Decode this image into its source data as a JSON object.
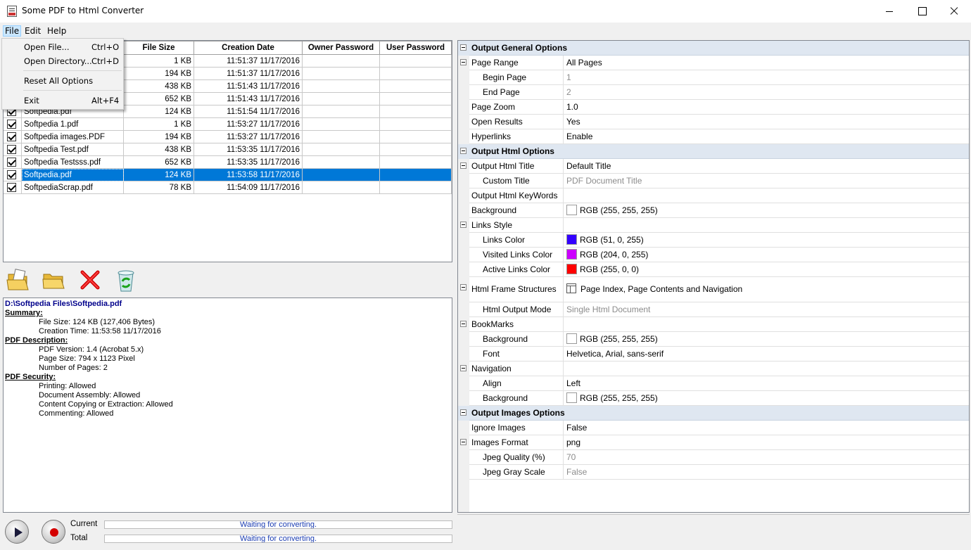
{
  "window": {
    "title": "Some PDF to Html Converter"
  },
  "menubar": {
    "file": "File",
    "edit": "Edit",
    "help": "Help"
  },
  "file_menu": [
    {
      "label": "Open File...",
      "shortcut": "Ctrl+O"
    },
    {
      "label": "Open Directory...",
      "shortcut": "Ctrl+D"
    },
    {
      "label": "Reset All Options",
      "shortcut": ""
    },
    {
      "label": "Exit",
      "shortcut": "Alt+F4"
    }
  ],
  "file_list": {
    "columns": [
      "File Size",
      "Creation Date",
      "Owner Password",
      "User Password"
    ],
    "rows": [
      {
        "name": "",
        "size": "1 KB",
        "date": "11:51:37 11/17/2016"
      },
      {
        "name": "",
        "size": "194 KB",
        "date": "11:51:37 11/17/2016"
      },
      {
        "name": "",
        "size": "438 KB",
        "date": "11:51:43 11/17/2016"
      },
      {
        "name": "",
        "size": "652 KB",
        "date": "11:51:43 11/17/2016"
      },
      {
        "name": "Softpedia.pdf",
        "size": "124 KB",
        "date": "11:51:54 11/17/2016"
      },
      {
        "name": "Softpedia 1.pdf",
        "size": "1 KB",
        "date": "11:53:27 11/17/2016"
      },
      {
        "name": "Softpedia images.PDF",
        "size": "194 KB",
        "date": "11:53:27 11/17/2016"
      },
      {
        "name": "Softpedia Test.pdf",
        "size": "438 KB",
        "date": "11:53:35 11/17/2016"
      },
      {
        "name": "Softpedia Testsss.pdf",
        "size": "652 KB",
        "date": "11:53:35 11/17/2016"
      },
      {
        "name": "Softpedia.pdf",
        "size": "124 KB",
        "date": "11:53:58 11/17/2016"
      },
      {
        "name": "SoftpediaScrap.pdf",
        "size": "78 KB",
        "date": "11:54:09 11/17/2016"
      }
    ],
    "selected_index": 9
  },
  "toolbar": {
    "icons": [
      "open-file-icon",
      "open-folder-icon",
      "delete-icon",
      "recycle-icon"
    ]
  },
  "details": {
    "path": "D:\\Softpedia Files\\Softpedia.pdf",
    "summary_head": "Summary:",
    "file_size": "File Size: 124 KB (127,406 Bytes)",
    "creation_time": "Creation Time: 11:53:58 11/17/2016",
    "desc_head": "PDF Description:",
    "pdf_version": "PDF Version: 1.4 (Acrobat 5.x)",
    "page_size": "Page Size: 794 x 1123 Pixel",
    "num_pages": "Number of Pages: 2",
    "security_head": "PDF Security:",
    "printing": "Printing: Allowed",
    "assembly": "Document Assembly: Allowed",
    "copying": "Content Copying or Extraction: Allowed",
    "commenting": "Commenting: Allowed"
  },
  "progress": {
    "current_label": "Current",
    "total_label": "Total",
    "current_text": "Waiting for converting.",
    "total_text": "Waiting for converting."
  },
  "colors": {
    "accent": "#0078d7",
    "category_bg": "#dfe7f1",
    "links_color": "#3300ff",
    "visited_links_color": "#cc00ff",
    "active_links_color": "#ff0000",
    "white": "#ffffff"
  },
  "properties": {
    "general_cat": "Output General Options",
    "page_range": {
      "name": "Page Range",
      "value": "All Pages"
    },
    "begin_page": {
      "name": "Begin Page",
      "value": "1"
    },
    "end_page": {
      "name": "End Page",
      "value": "2"
    },
    "page_zoom": {
      "name": "Page Zoom",
      "value": "1.0"
    },
    "open_results": {
      "name": "Open Results",
      "value": "Yes"
    },
    "hyperlinks": {
      "name": "Hyperlinks",
      "value": "Enable"
    },
    "html_cat": "Output Html Options",
    "html_title": {
      "name": "Output Html Title",
      "value": "Default Title"
    },
    "custom_title": {
      "name": "Custom Title",
      "value": "PDF Document Title"
    },
    "keywords": {
      "name": "Output Html KeyWords",
      "value": ""
    },
    "background": {
      "name": "Background",
      "value": "RGB (255, 255, 255)"
    },
    "links_style": {
      "name": "Links Style",
      "value": ""
    },
    "links_color": {
      "name": "Links Color",
      "value": "RGB (51, 0, 255)"
    },
    "visited_color": {
      "name": "Visited Links Color",
      "value": "RGB (204, 0, 255)"
    },
    "active_color": {
      "name": "Active Links Color",
      "value": "RGB (255, 0, 0)"
    },
    "frame_structures": {
      "name": "Html Frame Structures",
      "value": "Page Index, Page Contents and Navigation"
    },
    "output_mode": {
      "name": "Html Output Mode",
      "value": "Single Html Document"
    },
    "bookmarks": {
      "name": "BookMarks",
      "value": ""
    },
    "bm_background": {
      "name": "Background",
      "value": "RGB (255, 255, 255)"
    },
    "bm_font": {
      "name": "Font",
      "value": "Helvetica, Arial, sans-serif"
    },
    "navigation": {
      "name": "Navigation",
      "value": ""
    },
    "nav_align": {
      "name": "Align",
      "value": "Left"
    },
    "nav_background": {
      "name": "Background",
      "value": "RGB (255, 255, 255)"
    },
    "images_cat": "Output Images Options",
    "ignore_images": {
      "name": "Ignore Images",
      "value": "False"
    },
    "images_format": {
      "name": "Images Format",
      "value": "png"
    },
    "jpeg_quality": {
      "name": "Jpeg Quality (%)",
      "value": "70"
    },
    "jpeg_gray": {
      "name": "Jpeg Gray Scale",
      "value": "False"
    }
  }
}
